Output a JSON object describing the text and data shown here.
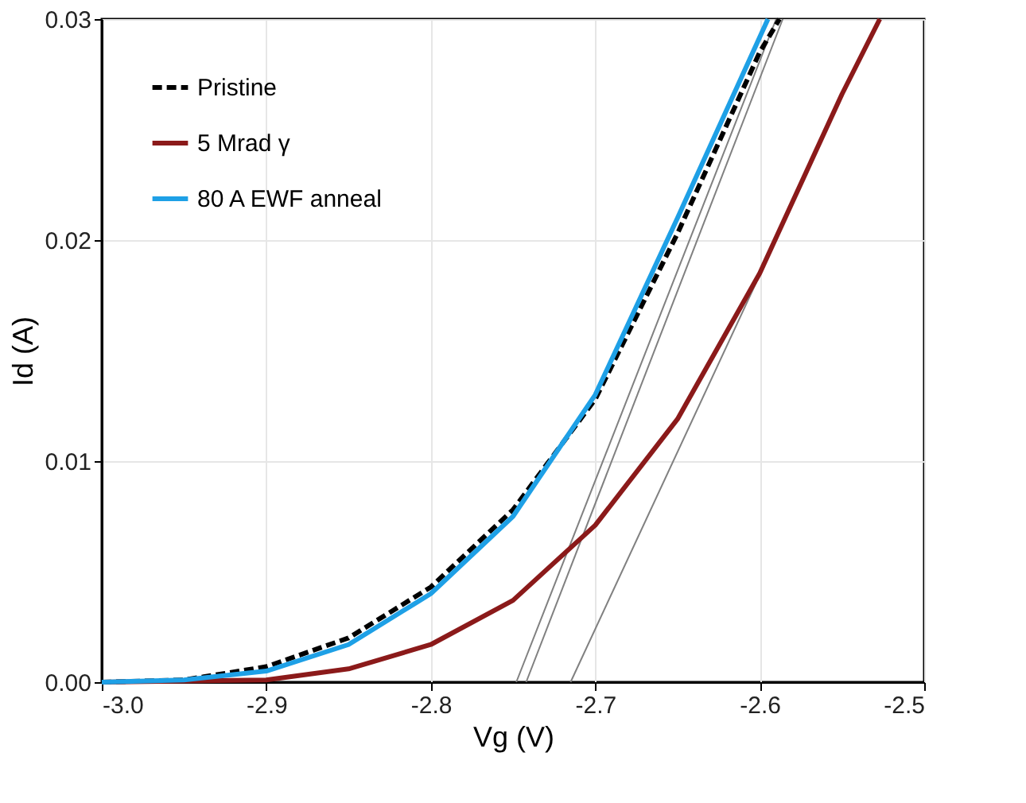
{
  "chart_data": {
    "type": "line",
    "xlabel": "Vg (V)",
    "ylabel": "Id (A)",
    "xlim": [
      -3.0,
      -2.5
    ],
    "ylim": [
      0,
      0.03
    ],
    "xticks": [
      {
        "value": -3.0,
        "label": "-3.0"
      },
      -2.9,
      -2.8,
      -2.7,
      -2.6,
      {
        "value": -2.5,
        "label": "-2.5"
      }
    ],
    "yticks": [
      {
        "value": 0,
        "label": "0.00"
      },
      0.01,
      0.02,
      0.03
    ],
    "grid": true,
    "legend": "top left",
    "series": [
      {
        "name": "Pristine",
        "color": "#000000",
        "line_style": "dashed",
        "x": [
          -3.0,
          -2.95,
          -2.9,
          -2.85,
          -2.8,
          -2.75,
          -2.7,
          -2.65,
          -2.6,
          -2.588
        ],
        "values": [
          0,
          0.0001,
          0.0007,
          0.002,
          0.0043,
          0.0078,
          0.0128,
          0.0203,
          0.0285,
          0.03
        ]
      },
      {
        "name": "5 Mrad γ",
        "color": "#8b1a1a",
        "line_style": "solid",
        "x": [
          -3.0,
          -2.9,
          -2.85,
          -2.8,
          -2.75,
          -2.7,
          -2.65,
          -2.6,
          -2.55,
          -2.527
        ],
        "values": [
          0,
          0.0001,
          0.0006,
          0.0017,
          0.0037,
          0.0071,
          0.0119,
          0.0185,
          0.0266,
          0.03
        ]
      },
      {
        "name": "80 A EWF anneal",
        "color": "#1ea0e6",
        "line_style": "solid",
        "x": [
          -3.0,
          -2.95,
          -2.9,
          -2.85,
          -2.8,
          -2.75,
          -2.7,
          -2.65,
          -2.595
        ],
        "values": [
          0,
          0.0001,
          0.0005,
          0.0017,
          0.004,
          0.0075,
          0.013,
          0.021,
          0.03
        ]
      },
      {
        "type": "line",
        "color": "#808080",
        "x": [
          -2.748,
          -2.59
        ],
        "values": [
          0,
          0.03
        ]
      },
      {
        "type": "line",
        "color": "#808080",
        "x": [
          -2.742,
          -2.586
        ],
        "values": [
          0,
          0.03
        ]
      },
      {
        "type": "line",
        "color": "#808080",
        "x": [
          -2.715,
          -2.602
        ],
        "values": [
          0,
          0.0181
        ]
      }
    ]
  }
}
